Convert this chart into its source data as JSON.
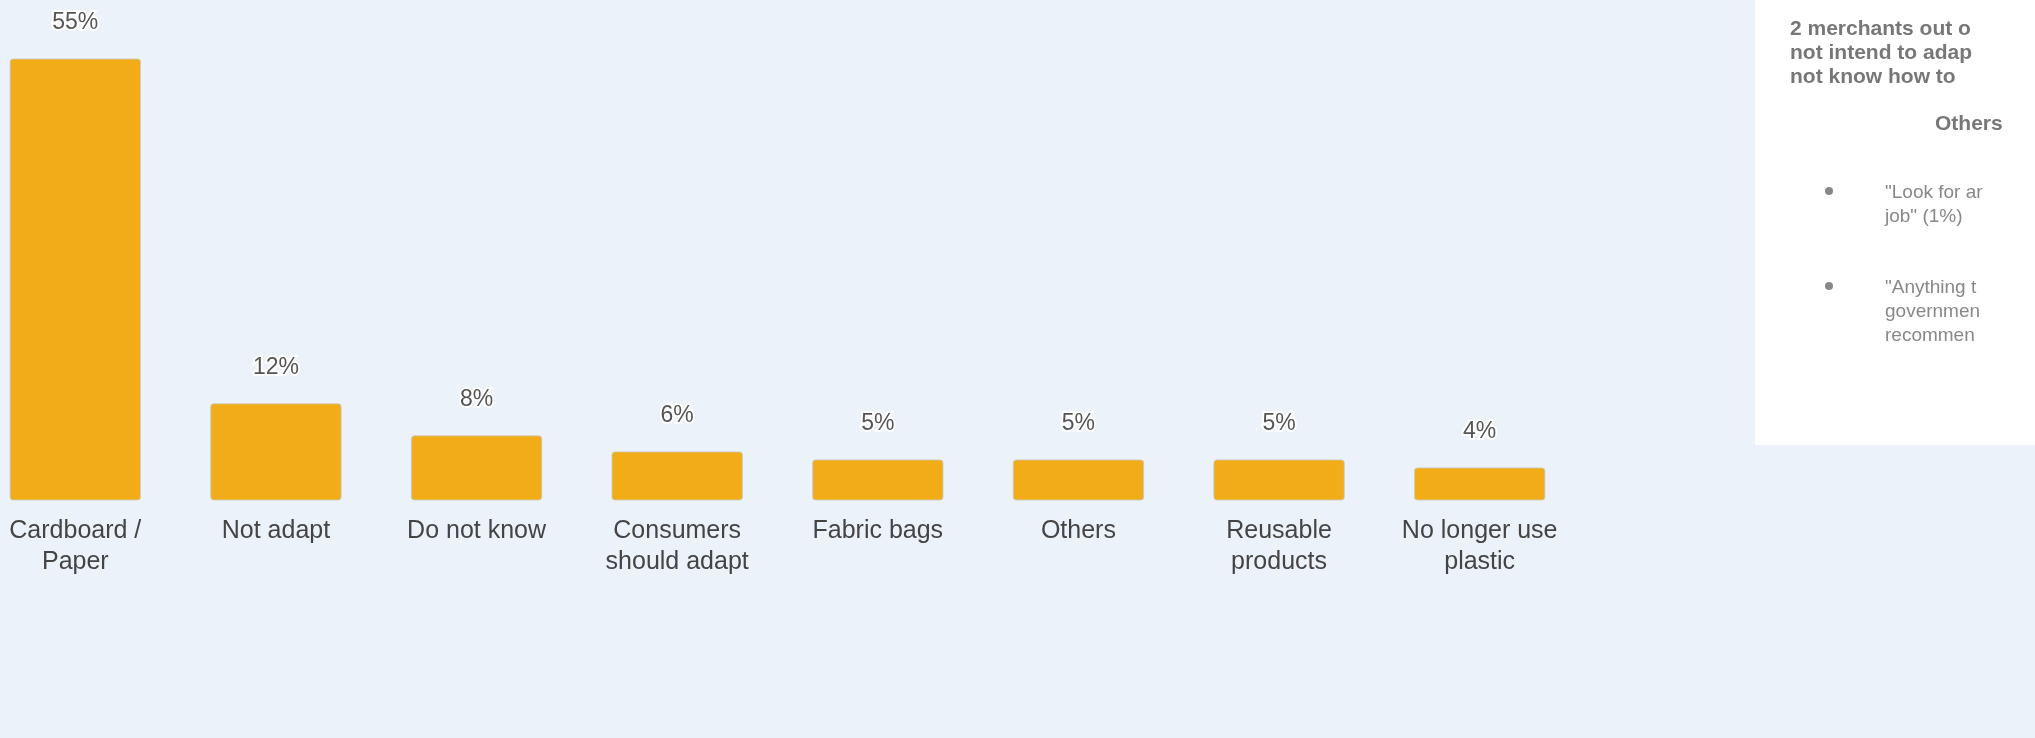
{
  "chart_data": {
    "type": "bar",
    "categories": [
      "Cardboard / Paper",
      "Not adapt",
      "Do not know",
      "Consumers should adapt",
      "Fabric bags",
      "Others",
      "Reusable products",
      "No longer use plastic"
    ],
    "values": [
      55,
      12,
      8,
      6,
      5,
      5,
      5,
      4
    ],
    "value_labels": [
      "55%",
      "12%",
      "8%",
      "6%",
      "5%",
      "5%",
      "5%",
      "4%"
    ],
    "color": "#f2ac17",
    "annotations": [
      "2 merchants out o",
      "not intend to adap",
      "not know how to",
      "Others",
      "\"Look for ar",
      "job\" (1%)",
      "\"Anything t",
      "governmen",
      "recommen"
    ]
  }
}
